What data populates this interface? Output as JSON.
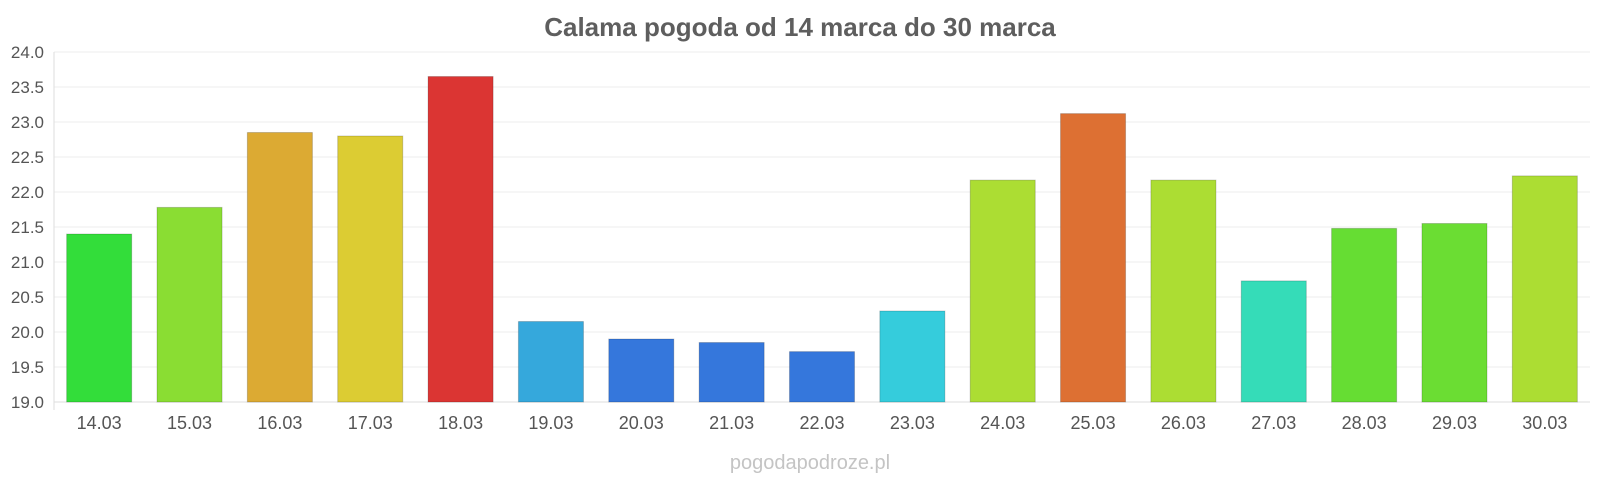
{
  "chart_data": {
    "type": "bar",
    "title": "Calama pogoda od 14 marca do 30 marca",
    "xlabel": "",
    "ylabel": "",
    "categories": [
      "14.03",
      "15.03",
      "16.03",
      "17.03",
      "18.03",
      "19.03",
      "20.03",
      "21.03",
      "22.03",
      "23.03",
      "24.03",
      "25.03",
      "26.03",
      "27.03",
      "28.03",
      "29.03",
      "30.03"
    ],
    "values": [
      21.4,
      21.78,
      22.85,
      22.8,
      23.65,
      20.15,
      19.9,
      19.85,
      19.72,
      20.3,
      22.17,
      23.12,
      22.17,
      20.73,
      21.48,
      21.55,
      22.23
    ],
    "colors": [
      "#33dd3a",
      "#8add33",
      "#dcaa33",
      "#dccc33",
      "#db3533",
      "#35a8dc",
      "#3577dc",
      "#3577dc",
      "#3577dc",
      "#35ccdc",
      "#acdd33",
      "#dd7033",
      "#acdd33",
      "#35dcb8",
      "#66dd33",
      "#6bdd33",
      "#acdd33"
    ],
    "ylim": [
      19.0,
      24.0
    ],
    "yticks": [
      "19.0",
      "19.5",
      "20.0",
      "20.5",
      "21.0",
      "21.5",
      "22.0",
      "22.5",
      "23.0",
      "23.5",
      "24.0"
    ],
    "grid": true,
    "legend": "none"
  },
  "watermark": "pogodapodroze.pl"
}
